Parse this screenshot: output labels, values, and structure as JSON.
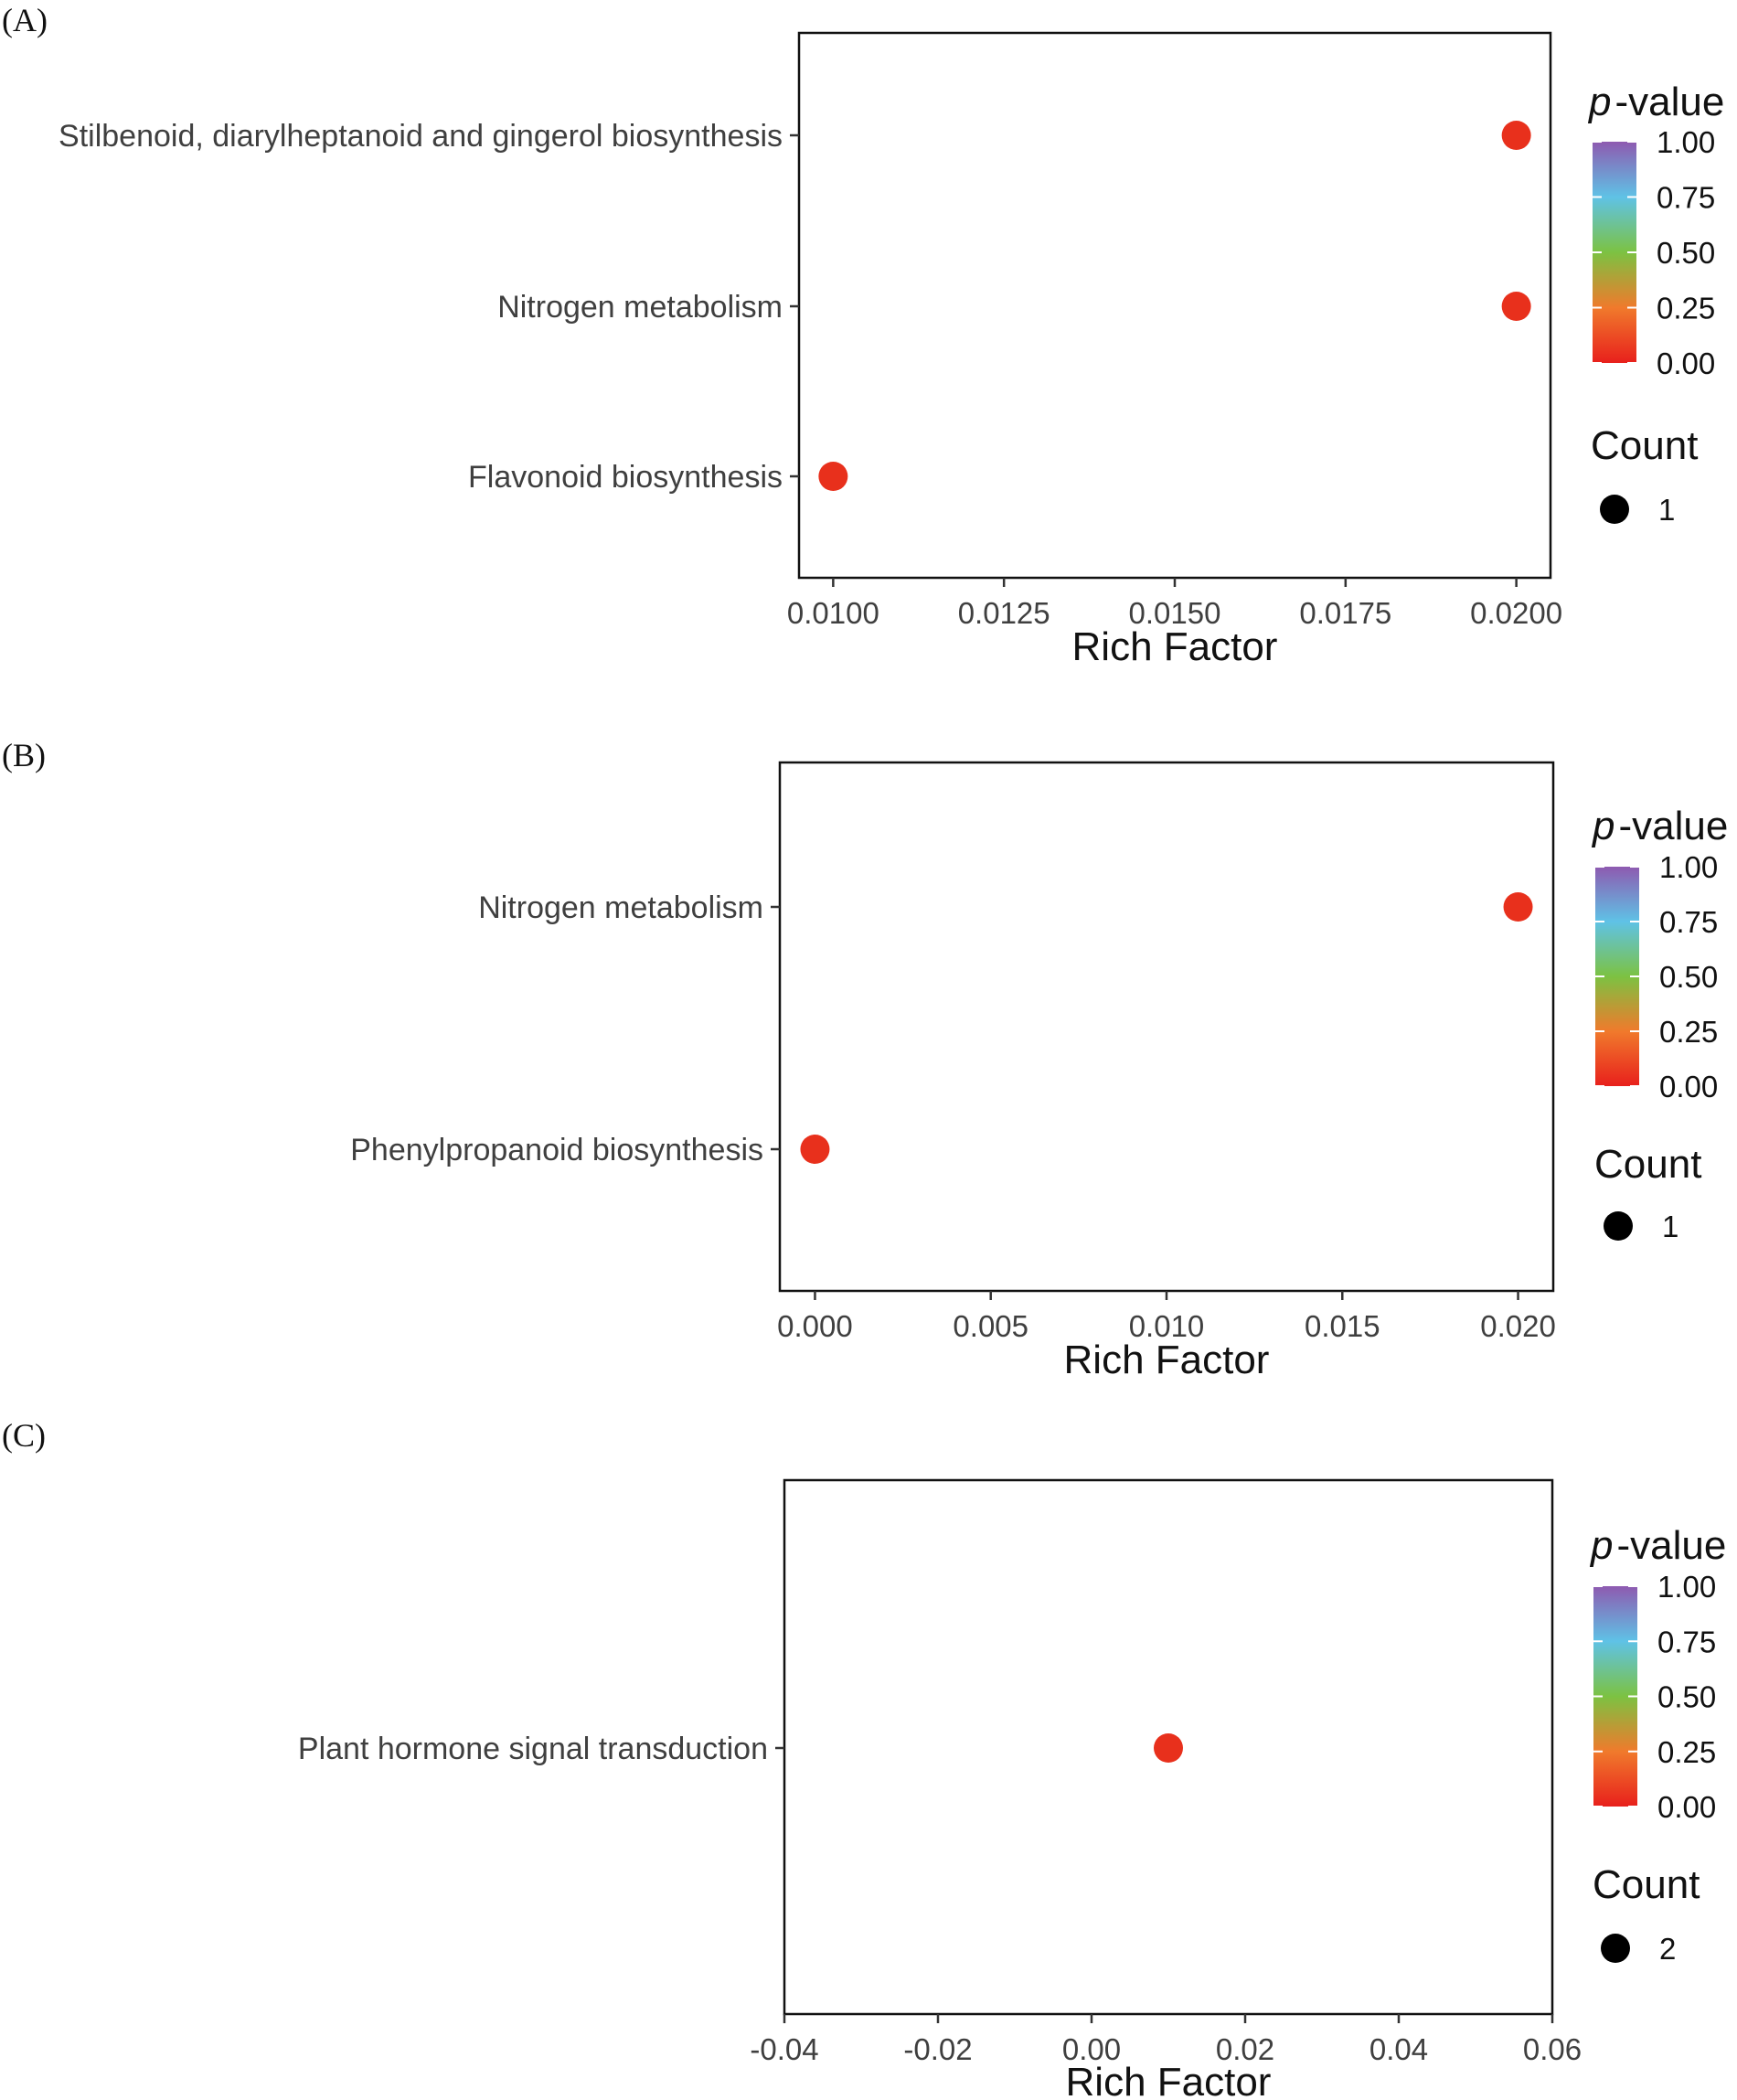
{
  "colors": {
    "scale_low": "#e8201c",
    "scale_q1": "#f07a2c",
    "scale_mid": "#7cc242",
    "scale_q3": "#5fc2e6",
    "scale_high": "#8e5ab0",
    "point": "#e8301c"
  },
  "chart_data": [
    {
      "type": "scatter",
      "panel_label": "(A)",
      "xlabel": "Rich Factor",
      "ylabel": "",
      "xlim": [
        0.0095,
        0.0205
      ],
      "x_ticks": [
        0.01,
        0.0125,
        0.015,
        0.0175,
        0.02
      ],
      "x_tick_labels": [
        "0.0100",
        "0.0125",
        "0.0150",
        "0.0175",
        "0.0200"
      ],
      "categories": [
        "Stilbenoid, diarylheptanoid and gingerol biosynthesis",
        "Nitrogen metabolism",
        "Flavonoid biosynthesis"
      ],
      "points": [
        {
          "pathway": "Stilbenoid, diarylheptanoid and gingerol biosynthesis",
          "rich_factor": 0.02,
          "p_value": 0.0,
          "count": 1
        },
        {
          "pathway": "Nitrogen metabolism",
          "rich_factor": 0.02,
          "p_value": 0.0,
          "count": 1
        },
        {
          "pathway": "Flavonoid biosynthesis",
          "rich_factor": 0.01,
          "p_value": 0.0,
          "count": 1
        }
      ],
      "color_legend": {
        "title_italic": "p",
        "title_rest": "-value",
        "ticks": [
          "1.00",
          "0.75",
          "0.50",
          "0.25",
          "0.00"
        ]
      },
      "size_legend": {
        "title": "Count",
        "labels": [
          "1"
        ]
      }
    },
    {
      "type": "scatter",
      "panel_label": "(B)",
      "xlabel": "Rich Factor",
      "ylabel": "",
      "xlim": [
        -0.001,
        0.021
      ],
      "x_ticks": [
        0.0,
        0.005,
        0.01,
        0.015,
        0.02
      ],
      "x_tick_labels": [
        "0.000",
        "0.005",
        "0.010",
        "0.015",
        "0.020"
      ],
      "categories": [
        "Nitrogen metabolism",
        "Phenylpropanoid biosynthesis"
      ],
      "points": [
        {
          "pathway": "Nitrogen metabolism",
          "rich_factor": 0.02,
          "p_value": 0.0,
          "count": 1
        },
        {
          "pathway": "Phenylpropanoid biosynthesis",
          "rich_factor": 0.0,
          "p_value": 0.0,
          "count": 1
        }
      ],
      "color_legend": {
        "title_italic": "p",
        "title_rest": "-value",
        "ticks": [
          "1.00",
          "0.75",
          "0.50",
          "0.25",
          "0.00"
        ]
      },
      "size_legend": {
        "title": "Count",
        "labels": [
          "1"
        ]
      }
    },
    {
      "type": "scatter",
      "panel_label": "(C)",
      "xlabel": "Rich Factor",
      "ylabel": "",
      "xlim": [
        -0.04,
        0.06
      ],
      "x_ticks": [
        -0.04,
        -0.02,
        0.0,
        0.02,
        0.04,
        0.06
      ],
      "x_tick_labels": [
        "-0.04",
        "-0.02",
        "0.00",
        "0.02",
        "0.04",
        "0.06"
      ],
      "categories": [
        "Plant hormone signal transduction"
      ],
      "points": [
        {
          "pathway": "Plant hormone signal transduction",
          "rich_factor": 0.01,
          "p_value": 0.0,
          "count": 2
        }
      ],
      "color_legend": {
        "title_italic": "p",
        "title_rest": "-value",
        "ticks": [
          "1.00",
          "0.75",
          "0.50",
          "0.25",
          "0.00"
        ]
      },
      "size_legend": {
        "title": "Count",
        "labels": [
          "2"
        ]
      }
    }
  ]
}
